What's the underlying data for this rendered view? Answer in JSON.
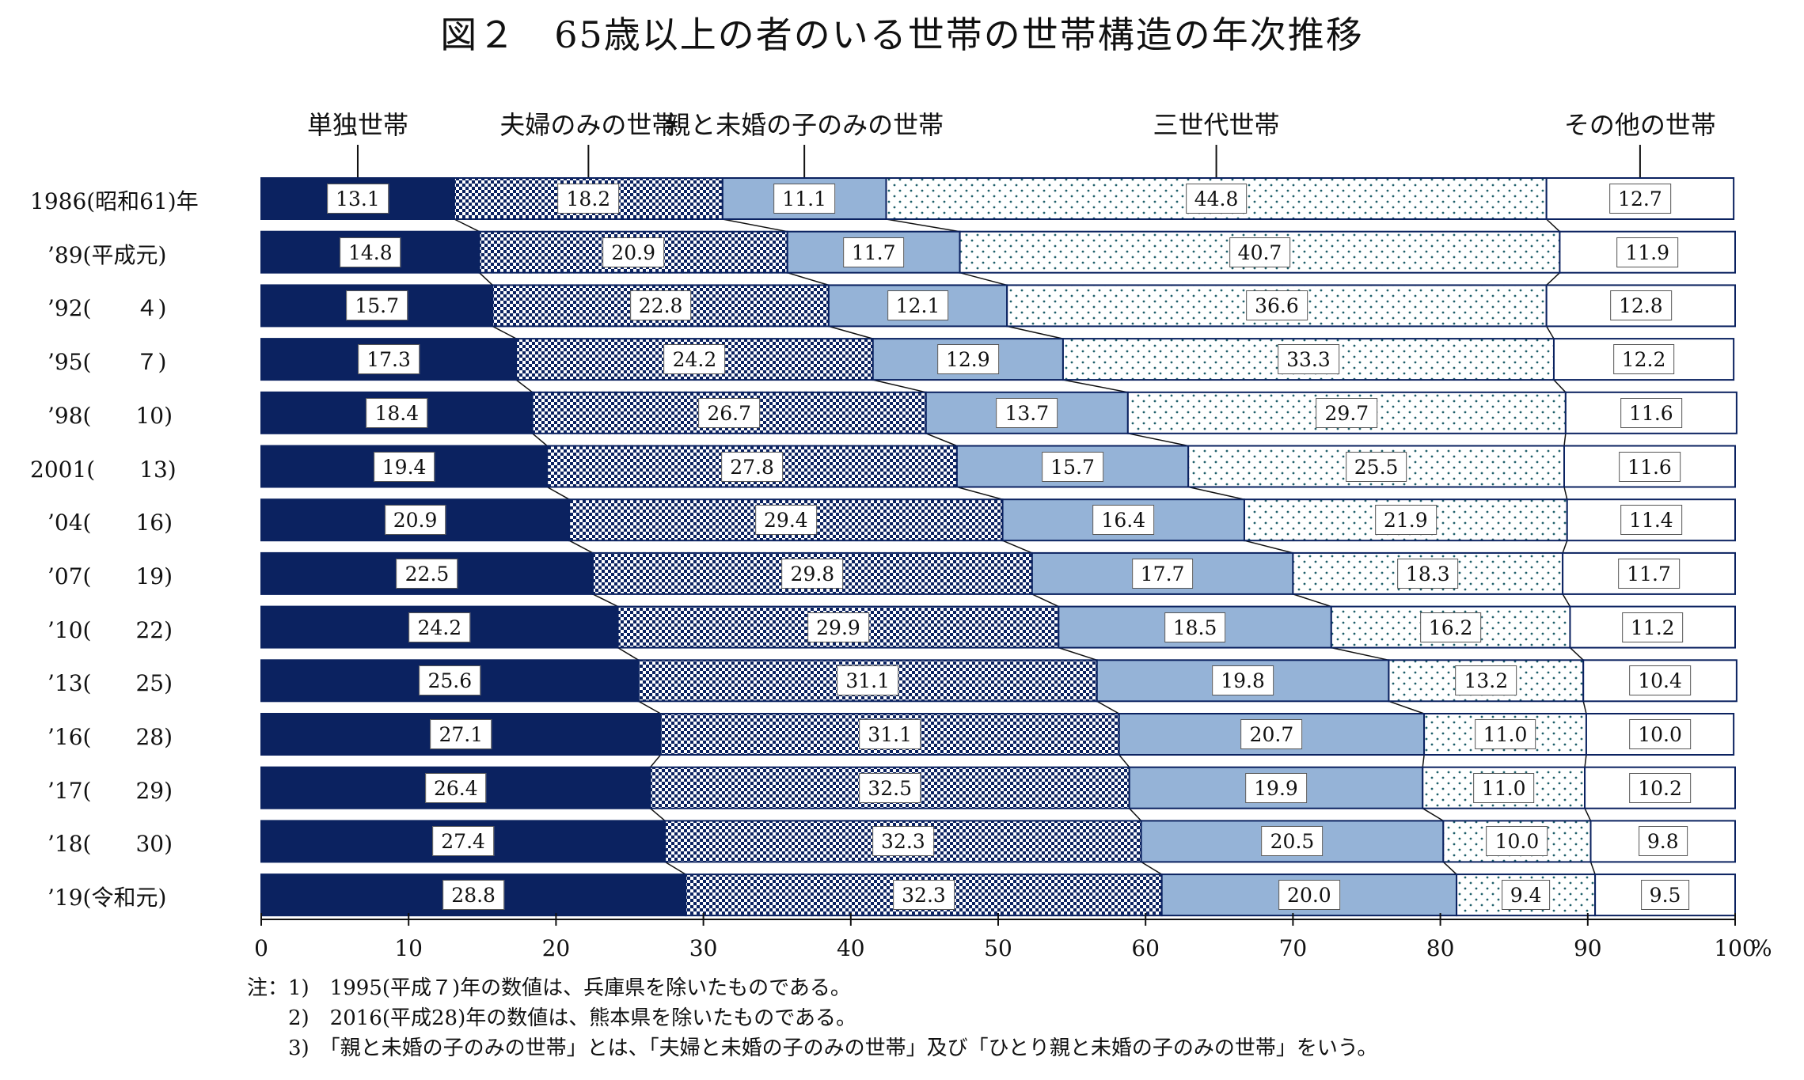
{
  "title": "図２　65歳以上の者のいる世帯の世帯構造の年次推移",
  "chart_data": {
    "type": "bar",
    "orientation": "horizontal",
    "stacked": true,
    "xlim": [
      0,
      100
    ],
    "x_ticks": [
      "0",
      "10",
      "20",
      "30",
      "40",
      "50",
      "60",
      "70",
      "80",
      "90",
      "100"
    ],
    "x_unit": "%",
    "categories": [
      "1986(昭和61)年",
      "’89(平成元)",
      "’92(　　４)",
      "’95(　　７)",
      "’98(　　10)",
      "2001(　　13)",
      "’04(　　16)",
      "’07(　　19)",
      "’10(　　22)",
      "’13(　　25)",
      "’16(　　28)",
      "’17(　　29)",
      "’18(　　30)",
      "’19(令和元)"
    ],
    "series": [
      {
        "name": "単独世帯",
        "color": "#0b2260",
        "pattern": "solid",
        "values": [
          13.1,
          14.8,
          15.7,
          17.3,
          18.4,
          19.4,
          20.9,
          22.5,
          24.2,
          25.6,
          27.1,
          26.4,
          27.4,
          28.8
        ]
      },
      {
        "name": "夫婦のみの世帯",
        "color": "#0b2260",
        "pattern": "checker",
        "values": [
          18.2,
          20.9,
          22.8,
          24.2,
          26.7,
          27.8,
          29.4,
          29.8,
          29.9,
          31.1,
          31.1,
          32.5,
          32.3,
          32.3
        ]
      },
      {
        "name": "親と未婚の子のみの世帯",
        "color": "#95b3d7",
        "pattern": "solid",
        "values": [
          11.1,
          11.7,
          12.1,
          12.9,
          13.7,
          15.7,
          16.4,
          17.7,
          18.5,
          19.8,
          20.7,
          19.9,
          20.5,
          20.0
        ]
      },
      {
        "name": "三世代世帯",
        "color": "#1f5f6a",
        "pattern": "dots",
        "values": [
          44.8,
          40.7,
          36.6,
          33.3,
          29.7,
          25.5,
          21.9,
          18.3,
          16.2,
          13.2,
          11.0,
          11.0,
          10.0,
          9.4
        ]
      },
      {
        "name": "その他の世帯",
        "color": "#ffffff",
        "pattern": "solid",
        "values": [
          12.7,
          11.9,
          12.8,
          12.2,
          11.6,
          11.6,
          11.4,
          11.7,
          11.2,
          10.4,
          10.0,
          10.2,
          9.8,
          9.5
        ]
      }
    ],
    "value_labels": [
      [
        "13.1",
        "18.2",
        "11.1",
        "44.8",
        "12.7"
      ],
      [
        "14.8",
        "20.9",
        "11.7",
        "40.7",
        "11.9"
      ],
      [
        "15.7",
        "22.8",
        "12.1",
        "36.6",
        "12.8"
      ],
      [
        "17.3",
        "24.2",
        "12.9",
        "33.3",
        "12.2"
      ],
      [
        "18.4",
        "26.7",
        "13.7",
        "29.7",
        "11.6"
      ],
      [
        "19.4",
        "27.8",
        "15.7",
        "25.5",
        "11.6"
      ],
      [
        "20.9",
        "29.4",
        "16.4",
        "21.9",
        "11.4"
      ],
      [
        "22.5",
        "29.8",
        "17.7",
        "18.3",
        "11.7"
      ],
      [
        "24.2",
        "29.9",
        "18.5",
        "16.2",
        "11.2"
      ],
      [
        "25.6",
        "31.1",
        "19.8",
        "13.2",
        "10.4"
      ],
      [
        "27.1",
        "31.1",
        "20.7",
        "11.0",
        "10.0"
      ],
      [
        "26.4",
        "32.5",
        "19.9",
        "11.0",
        "10.2"
      ],
      [
        "27.4",
        "32.3",
        "20.5",
        "10.0",
        "9.8"
      ],
      [
        "28.8",
        "32.3",
        "20.0",
        "9.4",
        "9.5"
      ]
    ],
    "connector_lines": true
  },
  "notes": [
    "注：1)　1995(平成７)年の数値は、兵庫県を除いたものである。",
    "　　2)　2016(平成28)年の数値は、熊本県を除いたものである。",
    "　　3)　「親と未婚の子のみの世帯」とは、「夫婦と未婚の子のみの世帯」及び「ひとり親と未婚の子のみの世帯」をいう。"
  ]
}
